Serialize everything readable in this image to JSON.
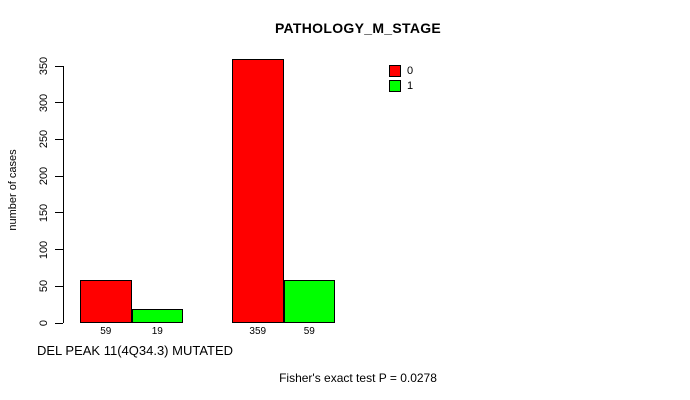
{
  "chart_data": {
    "type": "bar",
    "title": "PATHOLOGY_M_STAGE",
    "ylabel": "number of cases",
    "xlabel": "DEL PEAK 11(4Q34.3) MUTATED",
    "footer": "Fisher's exact test P = 0.0278",
    "ylim": [
      0,
      359
    ],
    "yticks": [
      0,
      50,
      100,
      150,
      200,
      250,
      300,
      350
    ],
    "grid": false,
    "legend_position": "top-right",
    "legend": [
      {
        "label": "0",
        "color": "#FF0000"
      },
      {
        "label": "1",
        "color": "#00FF00"
      }
    ],
    "groups": [
      {
        "bars": [
          {
            "series": "0",
            "value": 59,
            "label": "59",
            "color": "#FF0000"
          },
          {
            "series": "1",
            "value": 19,
            "label": "19",
            "color": "#00FF00"
          }
        ]
      },
      {
        "bars": [
          {
            "series": "0",
            "value": 359,
            "label": "359",
            "color": "#FF0000"
          },
          {
            "series": "1",
            "value": 59,
            "label": "59",
            "color": "#00FF00"
          }
        ]
      }
    ]
  }
}
